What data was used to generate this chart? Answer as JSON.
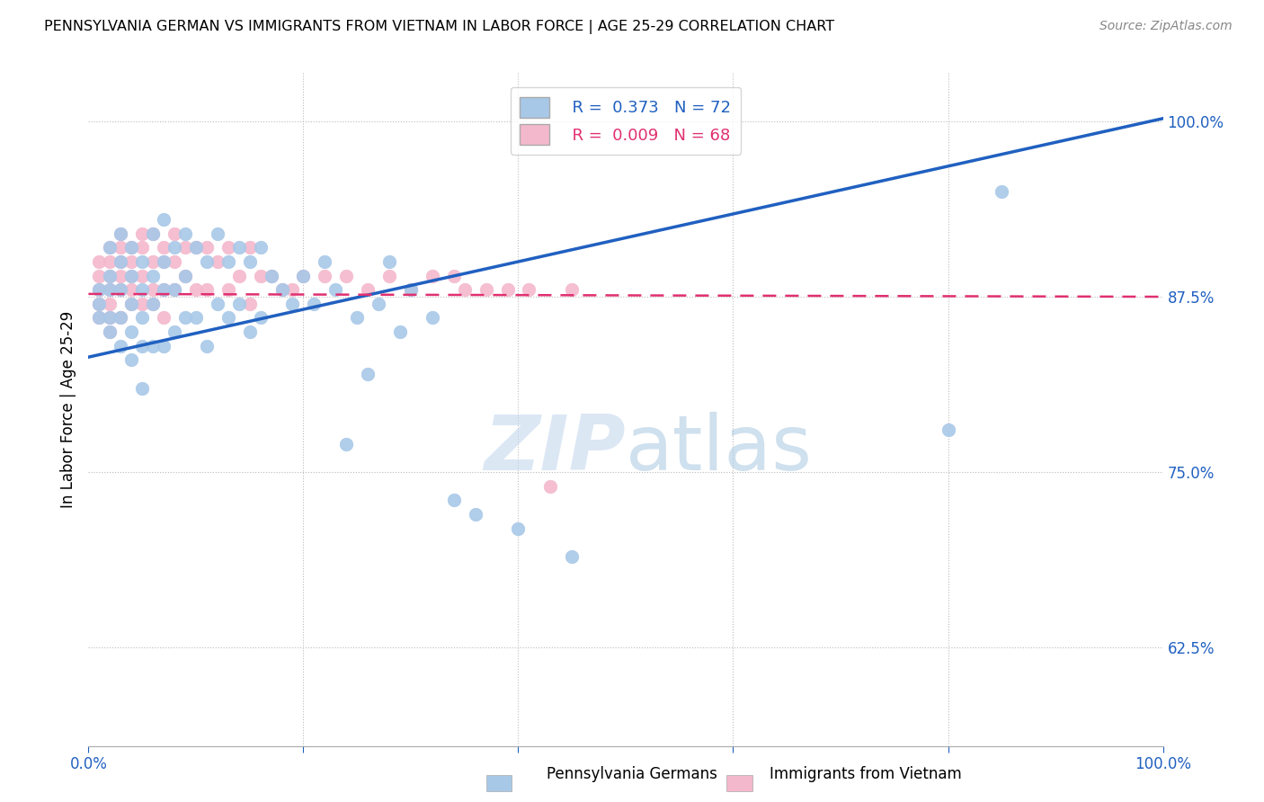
{
  "title": "PENNSYLVANIA GERMAN VS IMMIGRANTS FROM VIETNAM IN LABOR FORCE | AGE 25-29 CORRELATION CHART",
  "source": "Source: ZipAtlas.com",
  "ylabel": "In Labor Force | Age 25-29",
  "xlim": [
    0.0,
    1.0
  ],
  "ylim": [
    0.555,
    1.035
  ],
  "yticks": [
    0.625,
    0.75,
    0.875,
    1.0
  ],
  "ytick_labels": [
    "62.5%",
    "75.0%",
    "87.5%",
    "100.0%"
  ],
  "xticks": [
    0.0,
    0.2,
    0.4,
    0.6,
    0.8,
    1.0
  ],
  "legend_r_blue": "R =  0.373",
  "legend_n_blue": "N = 72",
  "legend_r_pink": "R =  0.009",
  "legend_n_pink": "N = 68",
  "blue_color": "#a8c8e8",
  "pink_color": "#f4b8cc",
  "blue_line_color": "#2060c0",
  "pink_line_color": "#e03070",
  "watermark_color": "#d0dff0",
  "title_fontsize": 11.5,
  "blue_line_x0": 0.0,
  "blue_line_y0": 0.832,
  "blue_line_x1": 1.0,
  "blue_line_y1": 1.002,
  "pink_line_x0": 0.0,
  "pink_line_y0": 0.877,
  "pink_line_x1": 1.0,
  "pink_line_y1": 0.875,
  "blue_scatter_x": [
    0.01,
    0.01,
    0.01,
    0.02,
    0.02,
    0.02,
    0.02,
    0.02,
    0.03,
    0.03,
    0.03,
    0.03,
    0.03,
    0.04,
    0.04,
    0.04,
    0.04,
    0.04,
    0.05,
    0.05,
    0.05,
    0.05,
    0.05,
    0.06,
    0.06,
    0.06,
    0.06,
    0.07,
    0.07,
    0.07,
    0.07,
    0.08,
    0.08,
    0.08,
    0.09,
    0.09,
    0.09,
    0.1,
    0.1,
    0.11,
    0.11,
    0.12,
    0.12,
    0.13,
    0.13,
    0.14,
    0.14,
    0.15,
    0.15,
    0.16,
    0.16,
    0.17,
    0.18,
    0.19,
    0.2,
    0.21,
    0.22,
    0.23,
    0.24,
    0.25,
    0.26,
    0.27,
    0.28,
    0.29,
    0.3,
    0.32,
    0.34,
    0.36,
    0.4,
    0.45,
    0.8,
    0.85
  ],
  "blue_scatter_y": [
    0.88,
    0.87,
    0.86,
    0.91,
    0.89,
    0.88,
    0.86,
    0.85,
    0.92,
    0.9,
    0.88,
    0.86,
    0.84,
    0.91,
    0.89,
    0.87,
    0.85,
    0.83,
    0.9,
    0.88,
    0.86,
    0.84,
    0.81,
    0.92,
    0.89,
    0.87,
    0.84,
    0.93,
    0.9,
    0.88,
    0.84,
    0.91,
    0.88,
    0.85,
    0.92,
    0.89,
    0.86,
    0.91,
    0.86,
    0.9,
    0.84,
    0.92,
    0.87,
    0.9,
    0.86,
    0.91,
    0.87,
    0.9,
    0.85,
    0.91,
    0.86,
    0.89,
    0.88,
    0.87,
    0.89,
    0.87,
    0.9,
    0.88,
    0.77,
    0.86,
    0.82,
    0.87,
    0.9,
    0.85,
    0.88,
    0.86,
    0.73,
    0.72,
    0.71,
    0.69,
    0.78,
    0.95
  ],
  "pink_scatter_x": [
    0.01,
    0.01,
    0.01,
    0.01,
    0.01,
    0.02,
    0.02,
    0.02,
    0.02,
    0.02,
    0.02,
    0.02,
    0.03,
    0.03,
    0.03,
    0.03,
    0.03,
    0.03,
    0.04,
    0.04,
    0.04,
    0.04,
    0.04,
    0.05,
    0.05,
    0.05,
    0.05,
    0.06,
    0.06,
    0.06,
    0.06,
    0.07,
    0.07,
    0.07,
    0.07,
    0.08,
    0.08,
    0.08,
    0.09,
    0.09,
    0.1,
    0.1,
    0.11,
    0.11,
    0.12,
    0.13,
    0.13,
    0.14,
    0.15,
    0.15,
    0.16,
    0.17,
    0.18,
    0.19,
    0.2,
    0.22,
    0.24,
    0.26,
    0.28,
    0.3,
    0.32,
    0.34,
    0.35,
    0.37,
    0.39,
    0.41,
    0.43,
    0.45
  ],
  "pink_scatter_y": [
    0.9,
    0.89,
    0.88,
    0.87,
    0.86,
    0.91,
    0.9,
    0.89,
    0.88,
    0.87,
    0.86,
    0.85,
    0.92,
    0.91,
    0.9,
    0.89,
    0.88,
    0.86,
    0.91,
    0.9,
    0.89,
    0.88,
    0.87,
    0.92,
    0.91,
    0.89,
    0.87,
    0.92,
    0.9,
    0.88,
    0.87,
    0.91,
    0.9,
    0.88,
    0.86,
    0.92,
    0.9,
    0.88,
    0.91,
    0.89,
    0.91,
    0.88,
    0.91,
    0.88,
    0.9,
    0.91,
    0.88,
    0.89,
    0.91,
    0.87,
    0.89,
    0.89,
    0.88,
    0.88,
    0.89,
    0.89,
    0.89,
    0.88,
    0.89,
    0.88,
    0.89,
    0.89,
    0.88,
    0.88,
    0.88,
    0.88,
    0.74,
    0.88
  ]
}
